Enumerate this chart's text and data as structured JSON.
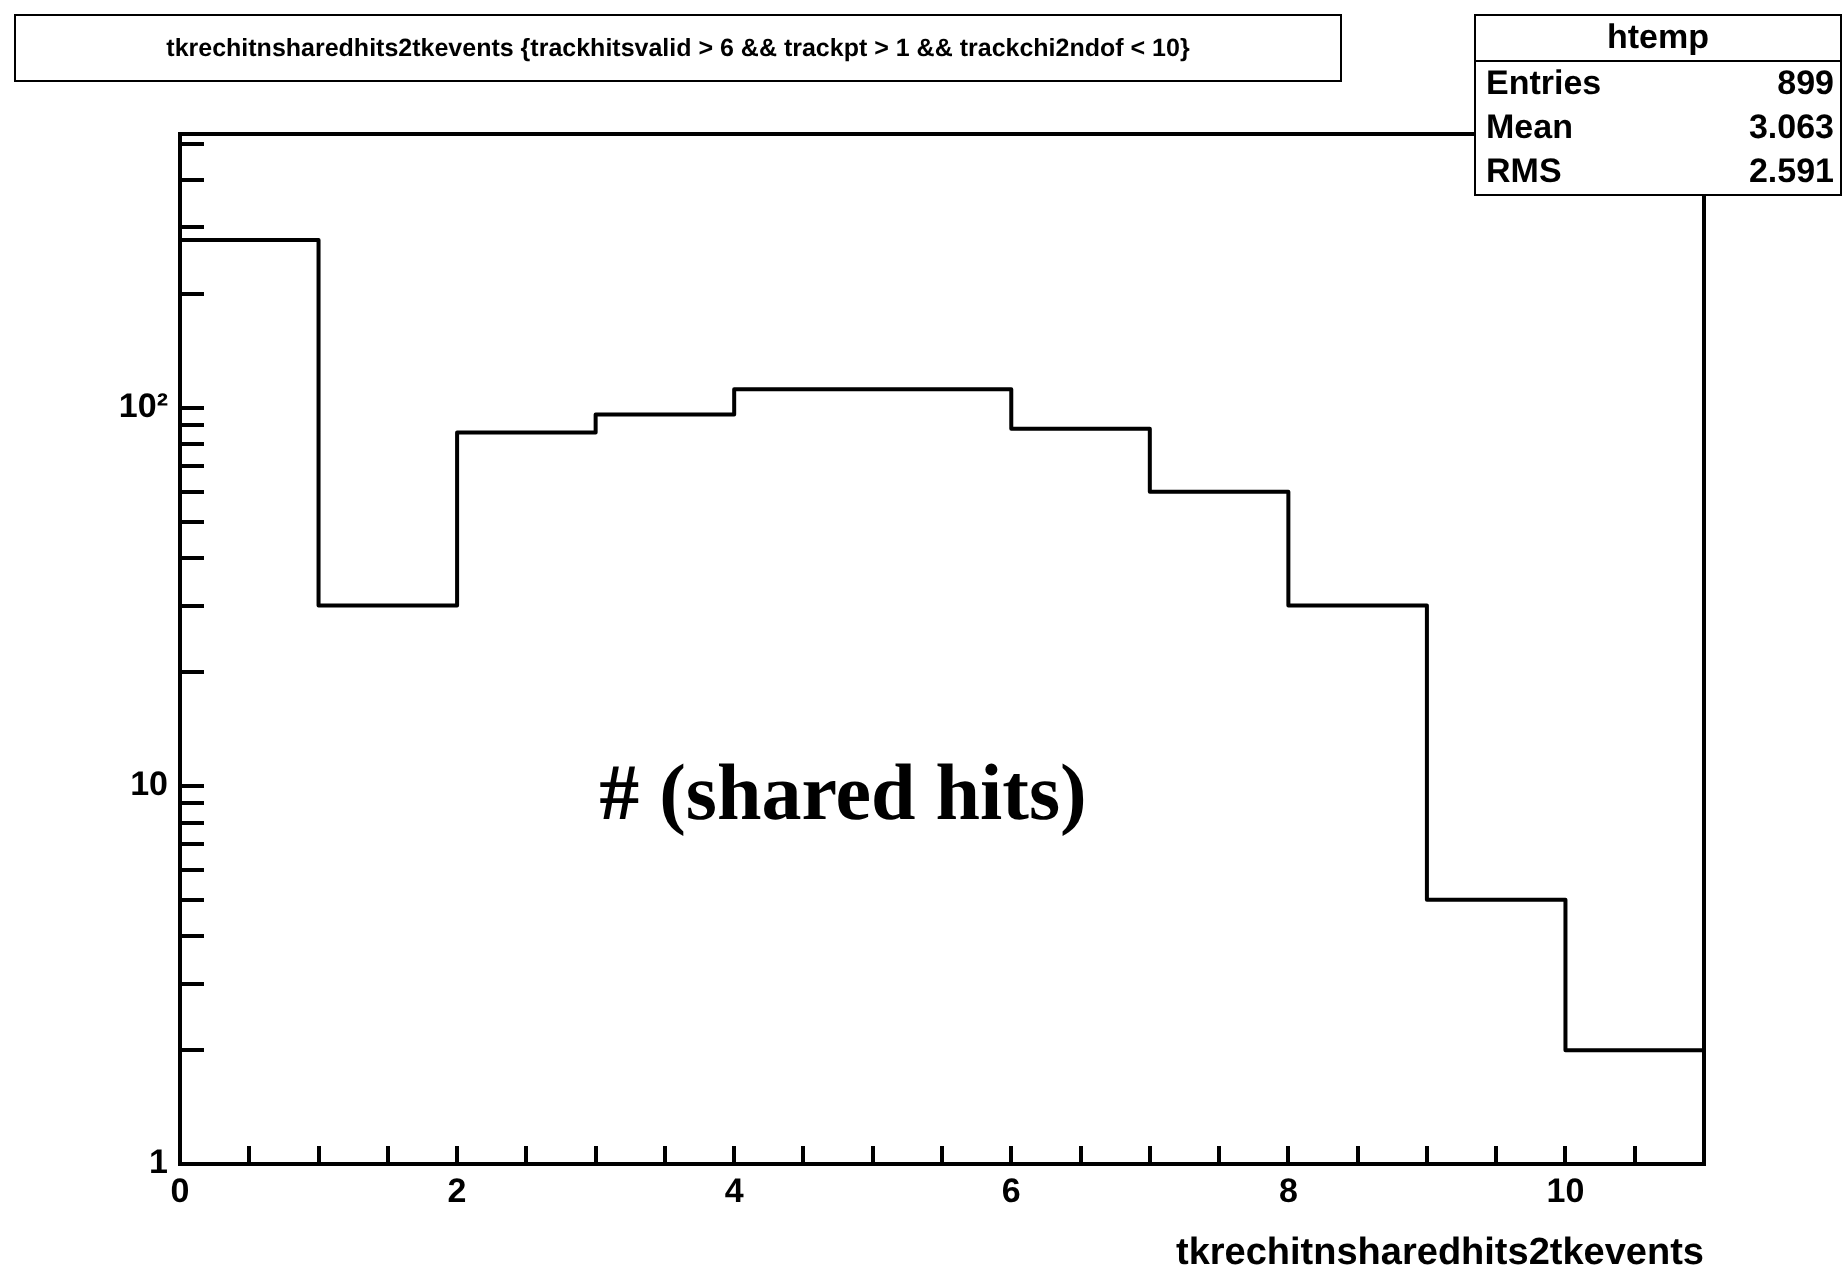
{
  "chart_data": {
    "type": "histogram",
    "title": "tkrechitnsharedhits2tkevents {trackhitsvalid > 6 && trackpt > 1 && trackchi2ndof < 10}",
    "xlabel": "tkrechitnsharedhits2tkevents",
    "bins": [
      0,
      1,
      2,
      3,
      4,
      5,
      6,
      7,
      8,
      9,
      10,
      11
    ],
    "values": [
      278,
      30,
      86,
      96,
      112,
      112,
      88,
      60,
      30,
      5,
      2
    ],
    "color": "#000000",
    "log": "y",
    "grid": false,
    "legend": false,
    "xlim": [
      0,
      11
    ],
    "xticks": [
      0,
      {
        "value": 0.5,
        "label": null
      },
      {
        "value": 1,
        "label": null
      },
      {
        "value": 1.5,
        "label": null
      },
      2,
      {
        "value": 2.5,
        "label": null
      },
      {
        "value": 3,
        "label": null
      },
      {
        "value": 3.5,
        "label": null
      },
      4,
      {
        "value": 4.5,
        "label": null
      },
      {
        "value": 5,
        "label": null
      },
      {
        "value": 5.5,
        "label": null
      },
      6,
      {
        "value": 6.5,
        "label": null
      },
      {
        "value": 7,
        "label": null
      },
      {
        "value": 7.5,
        "label": null
      },
      8,
      {
        "value": 8.5,
        "label": null
      },
      {
        "value": 9,
        "label": null
      },
      {
        "value": 9.5,
        "label": null
      },
      10,
      {
        "value": 10.5,
        "label": null
      }
    ],
    "ylim": [
      1,
      530
    ],
    "yticks": [
      1,
      {
        "value": 2,
        "label": null
      },
      {
        "value": 3,
        "label": null
      },
      {
        "value": 4,
        "label": null
      },
      {
        "value": 5,
        "label": null
      },
      {
        "value": 6,
        "label": null
      },
      {
        "value": 7,
        "label": null
      },
      {
        "value": 8,
        "label": null
      },
      {
        "value": 9,
        "label": null
      },
      10,
      {
        "value": 20,
        "label": null
      },
      {
        "value": 30,
        "label": null
      },
      {
        "value": 40,
        "label": null
      },
      {
        "value": 50,
        "label": null
      },
      {
        "value": 60,
        "label": null
      },
      {
        "value": 70,
        "label": null
      },
      {
        "value": 80,
        "label": null
      },
      {
        "value": 90,
        "label": null
      },
      {
        "value": 100,
        "label": "10²"
      },
      {
        "value": 200,
        "label": null
      },
      {
        "value": 300,
        "label": null
      },
      {
        "value": 400,
        "label": null
      },
      {
        "value": 500,
        "label": null
      }
    ],
    "annotations": [
      "# (shared hits)",
      "htemp",
      "Entries",
      "899",
      "Mean",
      "3.063",
      "RMS",
      "2.591"
    ]
  }
}
